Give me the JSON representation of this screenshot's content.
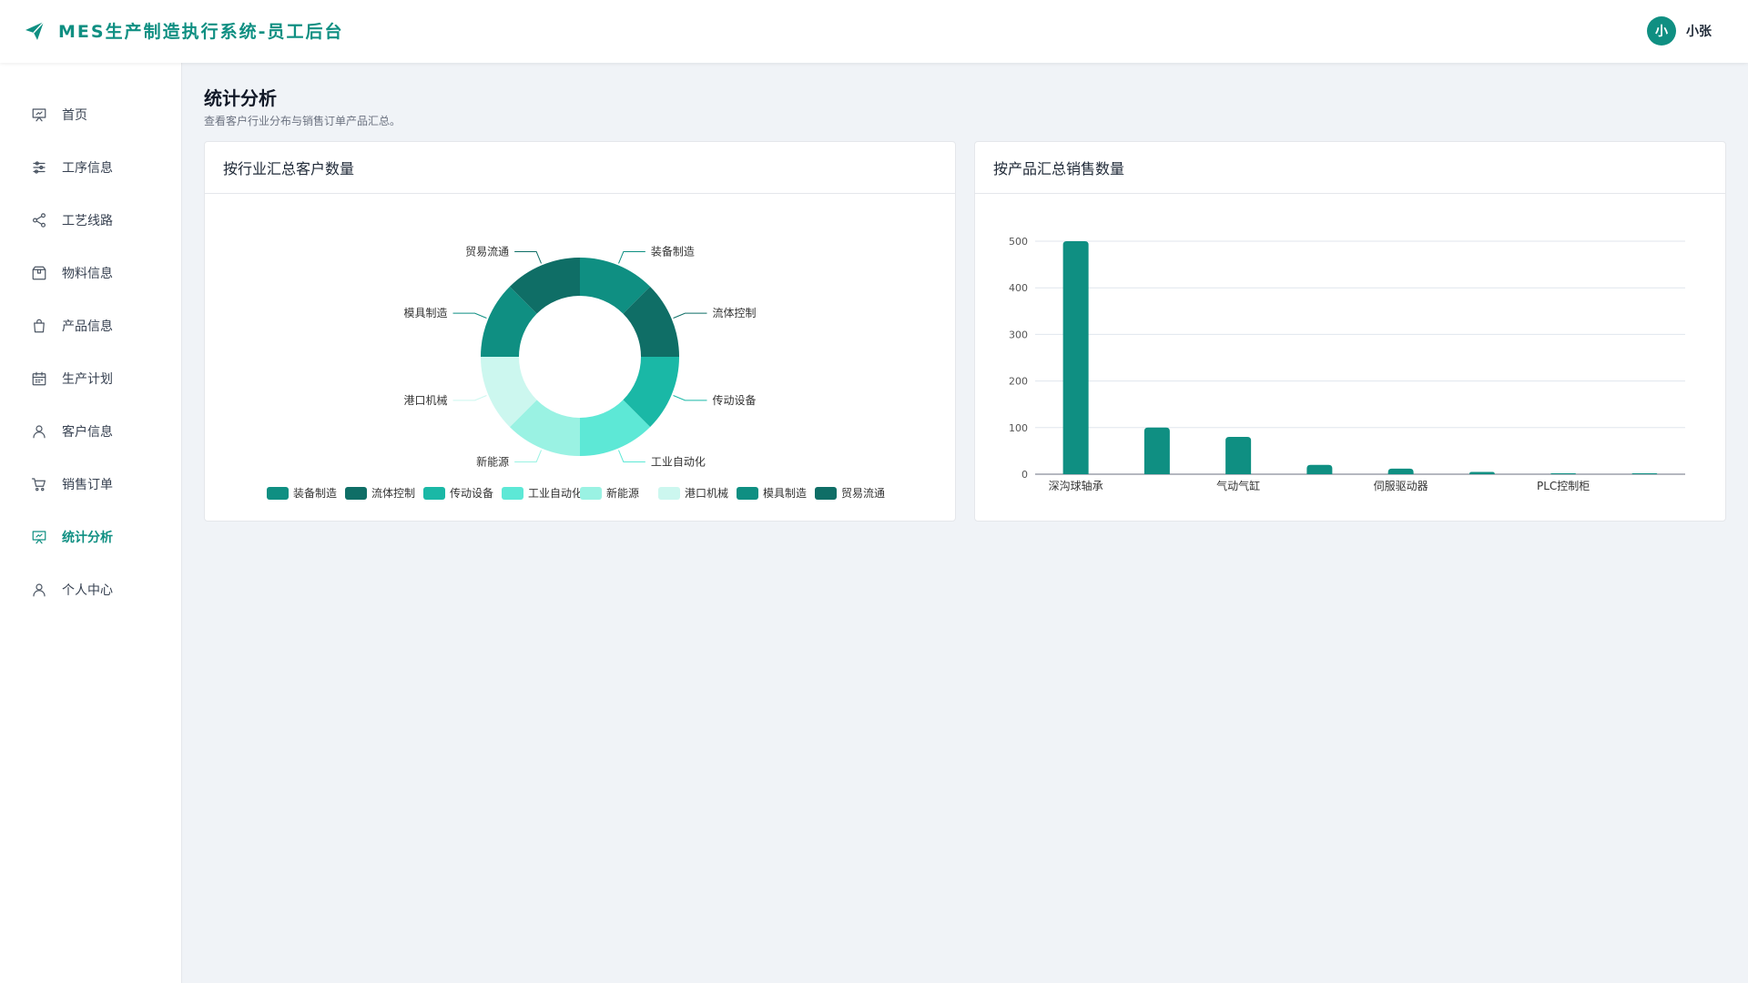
{
  "header": {
    "title": "MES生产制造执行系统-员工后台",
    "logo_icon": "paper-plane-icon",
    "user_initial": "小",
    "user_name": "小张",
    "brand_color": "#0f8f82"
  },
  "sidebar": {
    "items": [
      {
        "label": "首页",
        "icon": "presentation-icon",
        "active": false
      },
      {
        "label": "工序信息",
        "icon": "sliders-icon",
        "active": false
      },
      {
        "label": "工艺线路",
        "icon": "share-icon",
        "active": false
      },
      {
        "label": "物料信息",
        "icon": "package-icon",
        "active": false
      },
      {
        "label": "产品信息",
        "icon": "shopping-bag-icon",
        "active": false
      },
      {
        "label": "生产计划",
        "icon": "calendar-icon",
        "active": false
      },
      {
        "label": "客户信息",
        "icon": "user-icon",
        "active": false
      },
      {
        "label": "销售订单",
        "icon": "cart-icon",
        "active": false
      },
      {
        "label": "统计分析",
        "icon": "presentation-icon",
        "active": true
      },
      {
        "label": "个人中心",
        "icon": "user-icon",
        "active": false
      }
    ]
  },
  "page": {
    "title": "统计分析",
    "subtitle": "查看客户行业分布与销售订单产品汇总。"
  },
  "cards": {
    "industry_title": "按行业汇总客户数量",
    "product_title": "按产品汇总销售数量"
  },
  "chart_data": [
    {
      "type": "pie",
      "donut": true,
      "categories": [
        "装备制造",
        "流体控制",
        "传动设备",
        "工业自动化",
        "新能源",
        "港口机械",
        "模具制造",
        "贸易流通"
      ],
      "values": [
        1,
        1,
        1,
        1,
        1,
        1,
        1,
        1
      ],
      "colors": [
        "#0f8f82",
        "#0f6e66",
        "#1ab8a6",
        "#5de8d6",
        "#9af2e3",
        "#ccf7ef",
        "#0f8f82",
        "#0f6e66"
      ],
      "legend": "bottom"
    },
    {
      "type": "bar",
      "categories": [
        "深沟球轴承",
        "",
        "气动气缸",
        "",
        "伺服驱动器",
        "",
        "PLC控制柜",
        ""
      ],
      "values": [
        500,
        100,
        80,
        20,
        12,
        5,
        2,
        1
      ],
      "ylim": [
        0,
        500
      ],
      "yticks": [
        0,
        100,
        200,
        300,
        400,
        500
      ],
      "color": "#0f8f82",
      "grid": true
    }
  ]
}
